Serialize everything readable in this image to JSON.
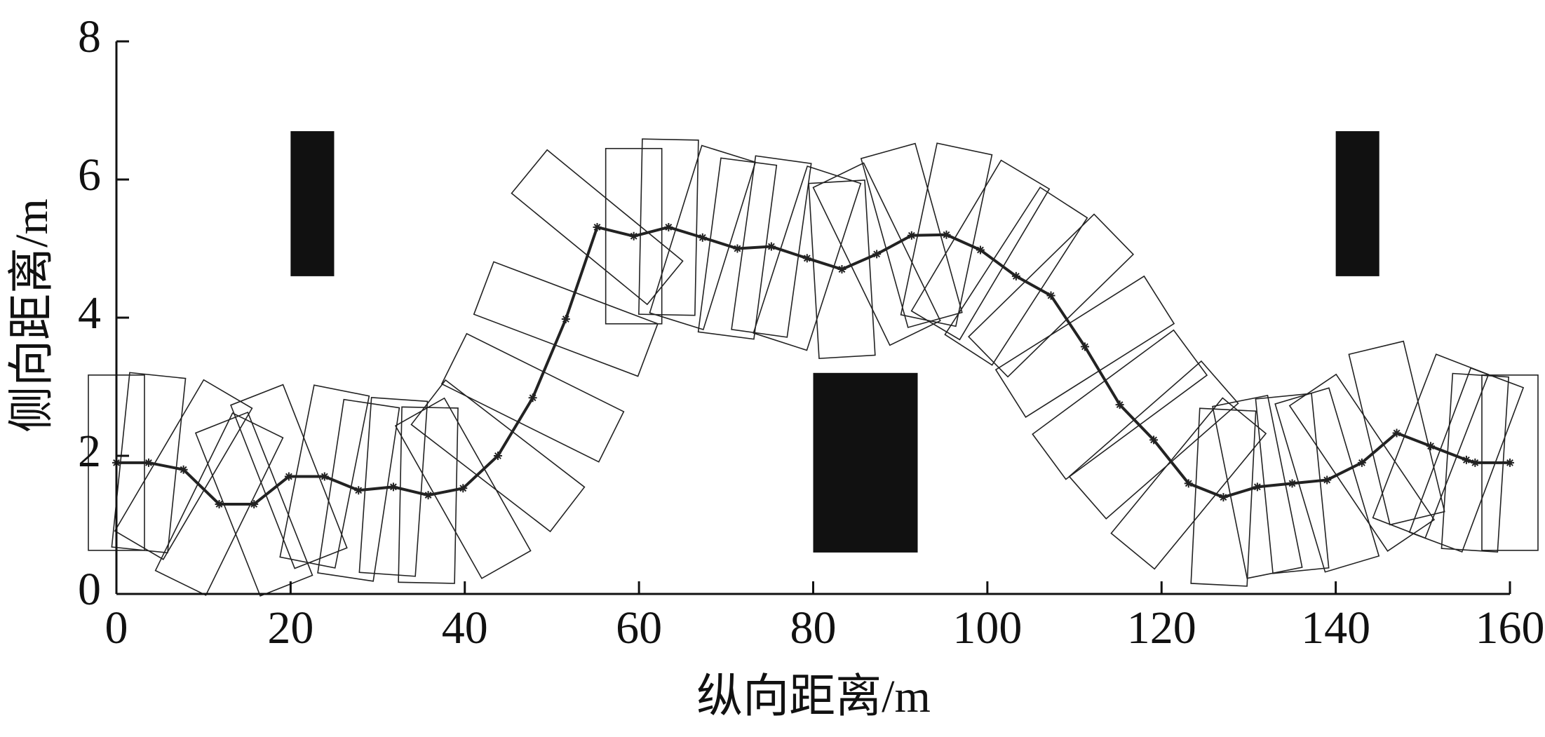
{
  "chart_data": {
    "type": "line",
    "x_label": "纵向距离/m",
    "y_label": "侧向距离/m",
    "x": [
      0,
      3.7,
      7.7,
      11.8,
      15.8,
      19.8,
      23.9,
      27.8,
      31.8,
      35.8,
      39.8,
      43.8,
      47.8,
      51.6,
      55.2,
      59.4,
      63.4,
      67.3,
      71.3,
      75.2,
      79.3,
      83.3,
      87.3,
      91.3,
      95.3,
      99.2,
      103.3,
      107.3,
      111.2,
      115.2,
      119.1,
      123.1,
      127.1,
      131.0,
      135.0,
      139.0,
      143.0,
      147.0,
      150.9,
      155.0,
      156.0,
      160.0
    ],
    "values": [
      1.9,
      1.9,
      1.8,
      1.3,
      1.3,
      1.7,
      1.7,
      1.5,
      1.55,
      1.43,
      1.53,
      2.0,
      2.84,
      3.98,
      5.31,
      5.18,
      5.31,
      5.16,
      5.0,
      5.03,
      4.86,
      4.7,
      4.92,
      5.19,
      5.2,
      4.98,
      4.6,
      4.32,
      3.58,
      2.74,
      2.23,
      1.6,
      1.4,
      1.55,
      1.6,
      1.65,
      1.9,
      2.33,
      2.14,
      1.94,
      1.9,
      1.9
    ],
    "color": "#222222",
    "obstacles": [
      {
        "x": [
          20,
          25
        ],
        "y": [
          4.6,
          6.7
        ]
      },
      {
        "x": [
          80,
          92
        ],
        "y": [
          0.6,
          3.2
        ]
      },
      {
        "x": [
          140,
          145
        ],
        "y": [
          4.6,
          6.7
        ]
      }
    ],
    "obstacle_color": "#111111",
    "xlim": [
      0,
      160
    ],
    "xticks": [
      0,
      20,
      40,
      60,
      80,
      100,
      120,
      140,
      160
    ],
    "ylim": [
      0,
      8
    ],
    "yticks": [
      0,
      2,
      4,
      6,
      8
    ]
  }
}
